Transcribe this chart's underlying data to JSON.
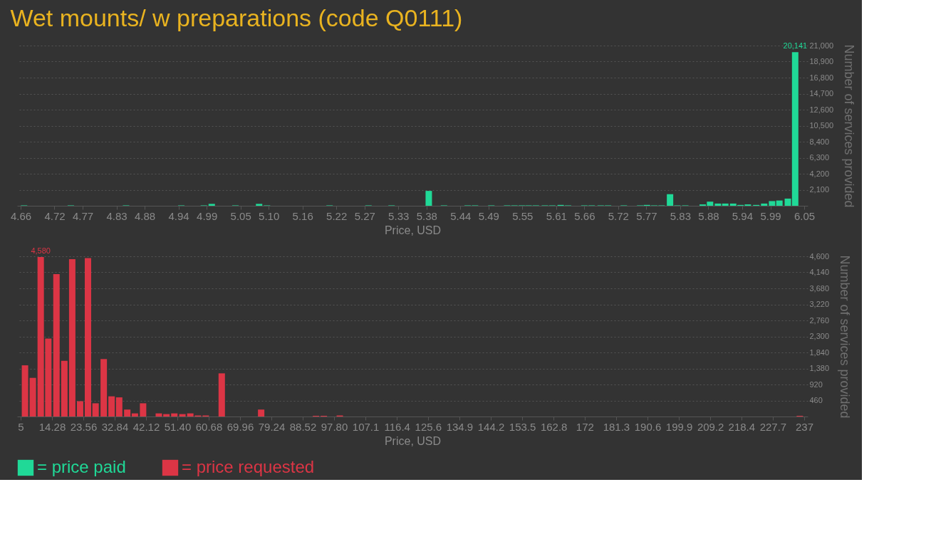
{
  "chart_data": [
    {
      "type": "bar",
      "title": "Wet mounts/ w preparations (code Q0111)",
      "xlabel": "Price, USD",
      "ylabel": "Number of services provided",
      "xlim": [
        4.66,
        6.05
      ],
      "xticks": [
        4.66,
        4.72,
        4.77,
        4.83,
        4.88,
        4.94,
        4.99,
        5.05,
        {
          "value": 5.1,
          "label": "5.10"
        },
        5.16,
        5.22,
        5.27,
        5.33,
        5.38,
        5.44,
        5.49,
        5.55,
        5.61,
        5.66,
        5.72,
        5.77,
        5.83,
        5.88,
        5.94,
        5.99,
        6.05
      ],
      "ylim": [
        0,
        21000
      ],
      "yticks": [
        {
          "value": 2100,
          "label": "2,100"
        },
        {
          "value": 4200,
          "label": "4,200"
        },
        {
          "value": 6300,
          "label": "6,300"
        },
        {
          "value": 8400,
          "label": "8,400"
        },
        {
          "value": 10500,
          "label": "10,500"
        },
        {
          "value": 12600,
          "label": "12,600"
        },
        {
          "value": 14700,
          "label": "14,700"
        },
        {
          "value": 16800,
          "label": "16,800"
        },
        {
          "value": 18900,
          "label": "18,900"
        },
        {
          "value": 21000,
          "label": "21,000"
        }
      ],
      "grid": "y",
      "legend": "bottom",
      "x": [
        4.666,
        4.749,
        4.847,
        4.945,
        4.985,
        4.999,
        5.041,
        5.083,
        5.097,
        5.208,
        5.277,
        5.318,
        5.384,
        5.411,
        5.453,
        5.466,
        5.495,
        5.523,
        5.536,
        5.549,
        5.561,
        5.574,
        5.59,
        5.603,
        5.618,
        5.631,
        5.66,
        5.673,
        5.689,
        5.702,
        5.73,
        5.759,
        5.771,
        5.784,
        5.797,
        5.812,
        5.825,
        5.839,
        5.87,
        5.883,
        5.897,
        5.91,
        5.924,
        5.937,
        5.95,
        5.965,
        5.979,
        5.993,
        6.006,
        6.021,
        6.034
      ],
      "series": [
        {
          "name": "= price paid",
          "color": "#20d997",
          "values": [
            50,
            50,
            50,
            50,
            50,
            250,
            50,
            250,
            50,
            50,
            50,
            50,
            1950,
            50,
            50,
            50,
            50,
            50,
            50,
            50,
            50,
            50,
            50,
            50,
            110,
            50,
            50,
            50,
            50,
            50,
            50,
            50,
            110,
            50,
            50,
            1520,
            50,
            50,
            180,
            540,
            290,
            290,
            290,
            110,
            180,
            110,
            290,
            615,
            690,
            940,
            20141
          ],
          "value_labels": [
            null,
            null,
            null,
            null,
            null,
            null,
            null,
            null,
            null,
            null,
            null,
            null,
            null,
            null,
            null,
            null,
            null,
            null,
            null,
            null,
            null,
            null,
            null,
            null,
            null,
            null,
            null,
            null,
            null,
            null,
            null,
            null,
            null,
            null,
            null,
            null,
            null,
            null,
            null,
            null,
            null,
            null,
            null,
            null,
            null,
            null,
            null,
            null,
            null,
            null,
            "20,141"
          ]
        }
      ]
    },
    {
      "type": "bar",
      "xlabel": "Price, USD",
      "ylabel": "Number of services provided",
      "xlim": [
        5,
        237
      ],
      "xticks": [
        5,
        14.28,
        23.56,
        32.84,
        42.12,
        {
          "value": 51.4,
          "label": "51.40"
        },
        60.68,
        69.96,
        79.24,
        88.52,
        {
          "value": 97.8,
          "label": "97.80"
        },
        107.1,
        116.4,
        125.6,
        134.9,
        144.2,
        153.5,
        162.8,
        172,
        181.3,
        190.6,
        199.9,
        209.2,
        218.4,
        227.7,
        237
      ],
      "ylim": [
        0,
        4600
      ],
      "yticks": [
        460,
        920,
        {
          "value": 1380,
          "label": "1,380"
        },
        {
          "value": 1840,
          "label": "1,840"
        },
        {
          "value": 2300,
          "label": "2,300"
        },
        {
          "value": 2760,
          "label": "2,760"
        },
        {
          "value": 3220,
          "label": "3,220"
        },
        {
          "value": 3680,
          "label": "3,680"
        },
        {
          "value": 4140,
          "label": "4,140"
        },
        {
          "value": 4600,
          "label": "4,600"
        }
      ],
      "grid": "y",
      "legend": "bottom",
      "x": [
        6.28,
        8.6,
        10.94,
        13.19,
        15.6,
        17.94,
        20.27,
        22.6,
        24.93,
        27.18,
        29.6,
        31.92,
        34.17,
        36.57,
        38.83,
        41.25,
        45.91,
        48.16,
        50.5,
        52.9,
        55.23,
        57.49,
        59.81,
        64.54,
        76.21,
        92.45,
        94.77,
        99.5,
        235.7
      ],
      "series": [
        {
          "name": "= price requested",
          "color": "#dc3545",
          "values": [
            1470,
            1110,
            4580,
            2240,
            4090,
            1600,
            4520,
            440,
            4550,
            380,
            1650,
            580,
            550,
            200,
            90,
            380,
            90,
            70,
            90,
            70,
            90,
            30,
            30,
            1240,
            200,
            20,
            20,
            30,
            20
          ],
          "value_labels": [
            null,
            null,
            "4,580",
            null,
            null,
            null,
            null,
            null,
            null,
            null,
            null,
            null,
            null,
            null,
            null,
            null,
            null,
            null,
            null,
            null,
            null,
            null,
            null,
            null,
            null,
            null,
            null,
            null,
            null
          ]
        }
      ]
    }
  ]
}
